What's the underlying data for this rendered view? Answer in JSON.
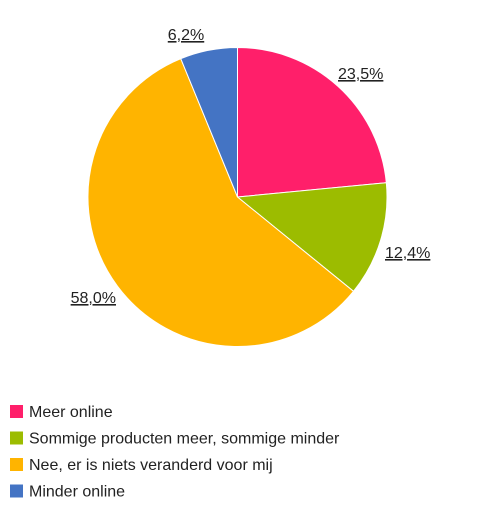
{
  "chart_data": {
    "type": "pie",
    "categories": [
      "Meer online",
      "Sommige producten meer, sommige minder",
      "Nee, er is niets veranderd voor mij",
      "Minder online"
    ],
    "values": [
      23.5,
      12.4,
      58.0,
      6.2
    ],
    "data_labels": [
      "23,5%",
      "12,4%",
      "58,0%",
      "6,2%"
    ],
    "colors": [
      "#ff1f6a",
      "#9cbc00",
      "#ffb400",
      "#4474c4"
    ],
    "start_angle": "12 o'clock",
    "direction": "clockwise",
    "legend_position": "bottom-left"
  }
}
